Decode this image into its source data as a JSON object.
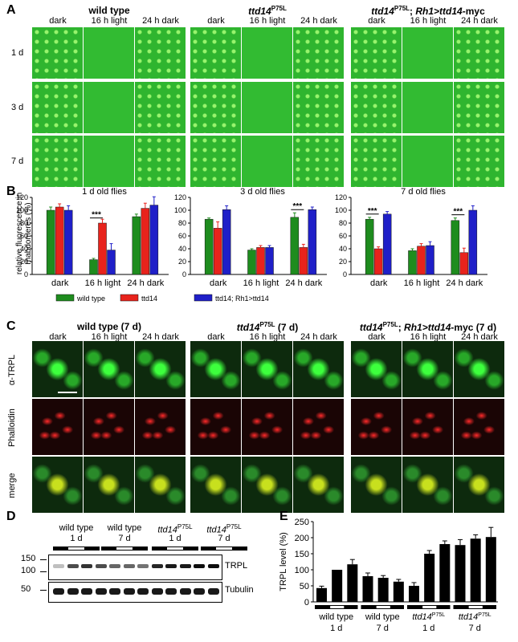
{
  "panelA": {
    "label": "A",
    "groups": [
      "wild type",
      "ttd14",
      "ttd14; Rh1>ttd14-myc"
    ],
    "group_sup": "P75L",
    "columns": [
      "dark",
      "16 h light",
      "24 h dark"
    ],
    "rows": [
      "1 d",
      "3 d",
      "7 d"
    ]
  },
  "panelB": {
    "label": "B",
    "ylabel": "relative fluorescence in rhabdomeres (%)",
    "legend": [
      "wild type",
      "ttd14",
      "ttd14; Rh1>ttd14"
    ],
    "colors": [
      "#1e8c1e",
      "#e8231c",
      "#1f1fc8"
    ],
    "sig": "***",
    "chart_data": [
      {
        "type": "bar",
        "title": "1 d old flies",
        "categories": [
          "dark",
          "16 h light",
          "24 h dark"
        ],
        "ylim": [
          0,
          120
        ],
        "series": [
          {
            "name": "wild type",
            "values": [
              100,
              23,
              90
            ],
            "err": [
              5,
              2,
              4
            ]
          },
          {
            "name": "ttd14P75L",
            "values": [
              105,
              80,
              103
            ],
            "err": [
              5,
              6,
              8
            ]
          },
          {
            "name": "ttd14P75L; Rh1>ttd14",
            "values": [
              100,
              38,
              108
            ],
            "err": [
              7,
              10,
              13
            ]
          }
        ]
      },
      {
        "type": "bar",
        "title": "3 d old flies",
        "categories": [
          "dark",
          "16 h light",
          "24 h dark"
        ],
        "ylim": [
          0,
          120
        ],
        "series": [
          {
            "name": "wild type",
            "values": [
              86,
              38,
              89
            ],
            "err": [
              2,
              2,
              7
            ]
          },
          {
            "name": "ttd14P75L",
            "values": [
              72,
              42,
              42
            ],
            "err": [
              10,
              3,
              5
            ]
          },
          {
            "name": "ttd14P75L; Rh1>ttd14",
            "values": [
              101,
              42,
              101
            ],
            "err": [
              6,
              3,
              4
            ]
          }
        ]
      },
      {
        "type": "bar",
        "title": "7 d old flies",
        "categories": [
          "dark",
          "16 h light",
          "24 h dark"
        ],
        "ylim": [
          0,
          120
        ],
        "series": [
          {
            "name": "wild type",
            "values": [
              86,
              37,
              84
            ],
            "err": [
              3,
              3,
              4
            ]
          },
          {
            "name": "ttd14P75L",
            "values": [
              40,
              44,
              34
            ],
            "err": [
              3,
              4,
              7
            ]
          },
          {
            "name": "ttd14P75L; Rh1>ttd14",
            "values": [
              94,
              45,
              100
            ],
            "err": [
              4,
              6,
              7
            ]
          }
        ]
      }
    ]
  },
  "panelC": {
    "label": "C",
    "groups": [
      "wild type (7 d)",
      "ttd14 (7 d)",
      "ttd14; Rh1>ttd14-myc (7 d)"
    ],
    "columns": [
      "dark",
      "16 h light",
      "24 h dark"
    ],
    "rows": [
      "α-TRPL",
      "Phalloidin",
      "merge"
    ]
  },
  "panelD": {
    "label": "D",
    "groups": [
      {
        "name": "wild type",
        "age": "1 d"
      },
      {
        "name": "wild type",
        "age": "7 d"
      },
      {
        "name": "ttd14",
        "age": "1 d"
      },
      {
        "name": "ttd14",
        "age": "7 d"
      }
    ],
    "markers": [
      "150",
      "100",
      "50"
    ],
    "bands": [
      "TRPL",
      "Tubulin"
    ]
  },
  "panelE": {
    "label": "E",
    "chart_data": {
      "type": "bar",
      "ylabel": "TRPL level (%)",
      "ylim": [
        0,
        250
      ],
      "yticks": [
        0,
        50,
        100,
        150,
        200,
        250
      ],
      "values": [
        43,
        100,
        117,
        80,
        75,
        63,
        50,
        150,
        180,
        177,
        197,
        202
      ],
      "err": [
        6,
        0,
        15,
        10,
        7,
        7,
        10,
        10,
        10,
        17,
        12,
        30
      ],
      "groups": [
        {
          "name": "wild type",
          "age": "1 d"
        },
        {
          "name": "wild type",
          "age": "7 d"
        },
        {
          "name": "ttd14",
          "age": "1 d"
        },
        {
          "name": "ttd14",
          "age": "7 d"
        }
      ]
    }
  }
}
